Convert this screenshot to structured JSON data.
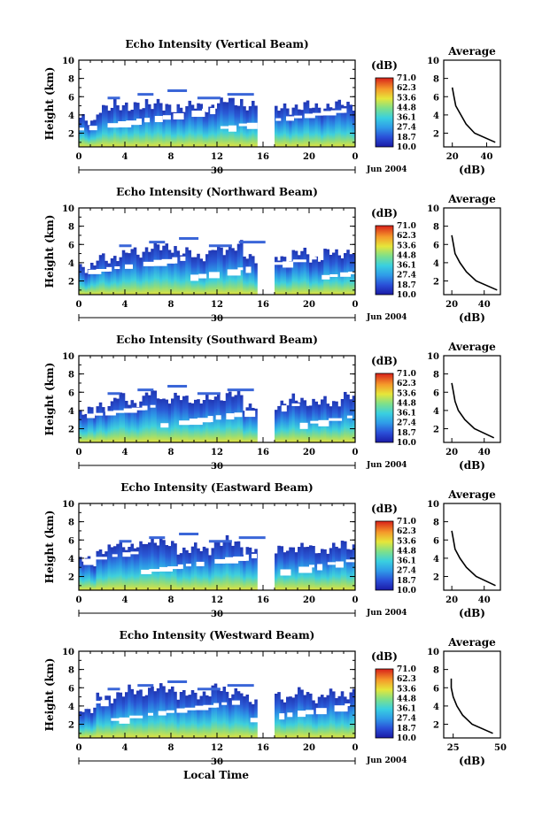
{
  "figure": {
    "xlabel": "Local Time",
    "colorbar_unit": "(dB)",
    "colorbar_ticks": [
      "71.0",
      "62.3",
      "53.6",
      "44.8",
      "36.1",
      "27.4",
      "18.7",
      "10.0"
    ],
    "day_label": "30",
    "month_label": "Jun 2004",
    "x_ticks": [
      "0",
      "4",
      "8",
      "12",
      "16",
      "20",
      "0"
    ],
    "y_ticks": [
      "2",
      "4",
      "6",
      "8",
      "10"
    ],
    "ylabel": "Height (km)",
    "avg_title": "Average",
    "avg_xlabel": "(dB)"
  },
  "chart_data": [
    {
      "type": "heatmap",
      "title": "Echo Intensity (Vertical Beam)",
      "xlim": [
        0,
        24
      ],
      "ylim": [
        0.5,
        10
      ],
      "clim": [
        10.0,
        71.0
      ],
      "data_gap_hours": [
        15.5,
        16.9
      ],
      "top_height_km": [
        3.4,
        4.6,
        5.2,
        4.8,
        5.4,
        4.6,
        5.0,
        4.8,
        5.2,
        5.6,
        4.8,
        0,
        4.6,
        5.0,
        4.8,
        5.0,
        5.2
      ],
      "average": {
        "x_ticks": [
          "20",
          "40"
        ],
        "xlim": [
          15,
          48
        ],
        "y": [
          1,
          2,
          3,
          4,
          5,
          6,
          7
        ],
        "x": [
          45,
          33,
          28,
          25,
          22,
          21,
          20
        ]
      }
    },
    {
      "type": "heatmap",
      "title": "Echo Intensity (Northward Beam)",
      "xlim": [
        0,
        24
      ],
      "ylim": [
        0.5,
        10
      ],
      "clim": [
        10.0,
        71.0
      ],
      "data_gap_hours": [
        15.5,
        16.9
      ],
      "top_height_km": [
        3.6,
        4.4,
        4.8,
        5.2,
        5.6,
        5.8,
        5.0,
        4.8,
        5.4,
        5.8,
        4.6,
        0,
        4.6,
        5.0,
        4.6,
        5.0,
        5.2
      ],
      "average": {
        "x_ticks": [
          "20",
          "40"
        ],
        "xlim": [
          15,
          50
        ],
        "y": [
          1,
          2,
          3,
          4,
          5,
          6,
          7
        ],
        "x": [
          48,
          35,
          29,
          25,
          22,
          21,
          20
        ]
      }
    },
    {
      "type": "heatmap",
      "title": "Echo Intensity (Southward Beam)",
      "xlim": [
        0,
        24
      ],
      "ylim": [
        0.5,
        10
      ],
      "clim": [
        10.0,
        71.0
      ],
      "data_gap_hours": [
        15.5,
        16.9
      ],
      "top_height_km": [
        3.8,
        4.6,
        5.4,
        5.0,
        5.8,
        5.2,
        5.4,
        5.0,
        5.6,
        5.6,
        4.6,
        0,
        4.8,
        5.2,
        4.8,
        5.0,
        5.4
      ],
      "average": {
        "x_ticks": [
          "20",
          "40"
        ],
        "xlim": [
          15,
          50
        ],
        "y": [
          1,
          2,
          3,
          4,
          5,
          6,
          7
        ],
        "x": [
          46,
          34,
          28,
          24,
          22,
          21,
          20
        ]
      }
    },
    {
      "type": "heatmap",
      "title": "Echo Intensity (Eastward Beam)",
      "xlim": [
        0,
        24
      ],
      "ylim": [
        0.5,
        10
      ],
      "clim": [
        10.0,
        71.0
      ],
      "data_gap_hours": [
        15.5,
        16.9
      ],
      "top_height_km": [
        3.8,
        4.8,
        5.6,
        5.2,
        6.0,
        5.4,
        5.0,
        5.0,
        5.6,
        5.8,
        4.8,
        0,
        4.8,
        5.4,
        4.8,
        5.2,
        5.4
      ],
      "average": {
        "x_ticks": [
          "20",
          "40"
        ],
        "xlim": [
          15,
          50
        ],
        "y": [
          1,
          2,
          3,
          4,
          5,
          6,
          7
        ],
        "x": [
          47,
          35,
          29,
          25,
          22,
          21,
          20
        ]
      }
    },
    {
      "type": "heatmap",
      "title": "Echo Intensity (Westward Beam)",
      "xlim": [
        0,
        24
      ],
      "ylim": [
        0.5,
        10
      ],
      "clim": [
        10.0,
        71.0
      ],
      "data_gap_hours": [
        15.5,
        16.9
      ],
      "top_height_km": [
        3.8,
        4.8,
        5.4,
        5.6,
        5.8,
        6.0,
        5.2,
        5.4,
        5.8,
        5.6,
        4.6,
        0,
        5.0,
        5.4,
        5.0,
        5.2,
        5.4
      ],
      "average": {
        "x_ticks": [
          "25",
          "50"
        ],
        "xlim": [
          20,
          50
        ],
        "y": [
          1,
          2,
          3,
          4,
          5,
          6,
          7
        ],
        "x": [
          46,
          35,
          30,
          27,
          25,
          24,
          24
        ]
      }
    }
  ]
}
